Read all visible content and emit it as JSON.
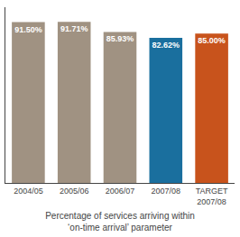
{
  "chart_data": {
    "type": "bar",
    "xlabel": "Percentage of services arriving within\n‘on-time arrival’ parameter",
    "categories": [
      "2004/05",
      "2005/06",
      "2006/07",
      "2007/08",
      "TARGET\n2007/08"
    ],
    "values": [
      91.5,
      91.71,
      85.93,
      82.62,
      85.0
    ],
    "value_labels": [
      "91.50%",
      "91.71%",
      "85.93%",
      "82.62%",
      "85.00%"
    ],
    "colors": [
      "#a09282",
      "#a09282",
      "#a09282",
      "#1a6f9e",
      "#c8531c"
    ],
    "data_labels": true,
    "ylim": [
      0,
      100
    ],
    "grid": false,
    "tick_labels": "x"
  }
}
